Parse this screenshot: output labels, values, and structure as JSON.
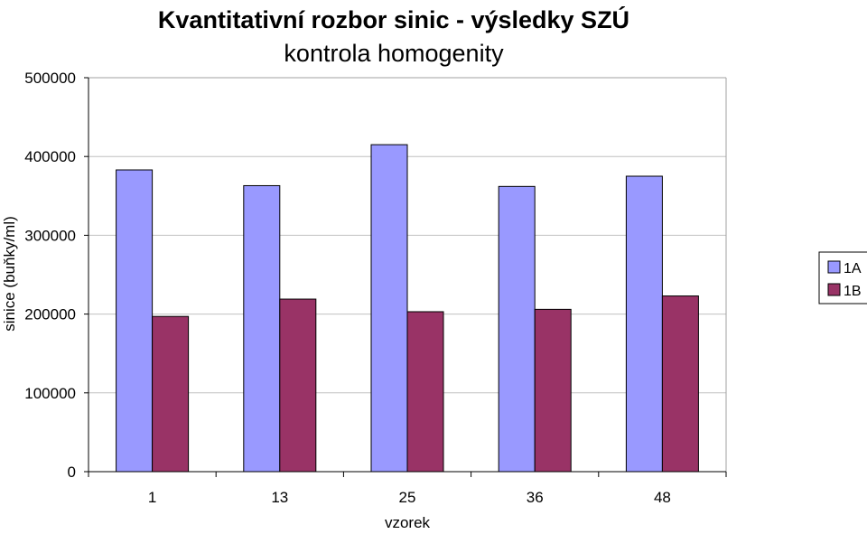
{
  "chart_data": {
    "type": "bar",
    "title": "Kvantitativní rozbor sinic - výsledky SZÚ",
    "subtitle": "kontrola homogenity",
    "xlabel": "vzorek",
    "ylabel": "sinice (buňky/ml)",
    "categories": [
      "1",
      "13",
      "25",
      "36",
      "48"
    ],
    "series": [
      {
        "name": "1A",
        "color": "#9999ff",
        "values": [
          383000,
          363000,
          415000,
          362000,
          375000
        ]
      },
      {
        "name": "1B",
        "color": "#993366",
        "values": [
          197000,
          219000,
          203000,
          206000,
          223000
        ]
      }
    ],
    "ylim": [
      0,
      500000
    ],
    "yticks": [
      0,
      100000,
      200000,
      300000,
      400000,
      500000
    ],
    "ytick_labels": [
      "0",
      "100000",
      "200000",
      "300000",
      "400000",
      "500000"
    ],
    "grid": true,
    "legend": "right"
  }
}
